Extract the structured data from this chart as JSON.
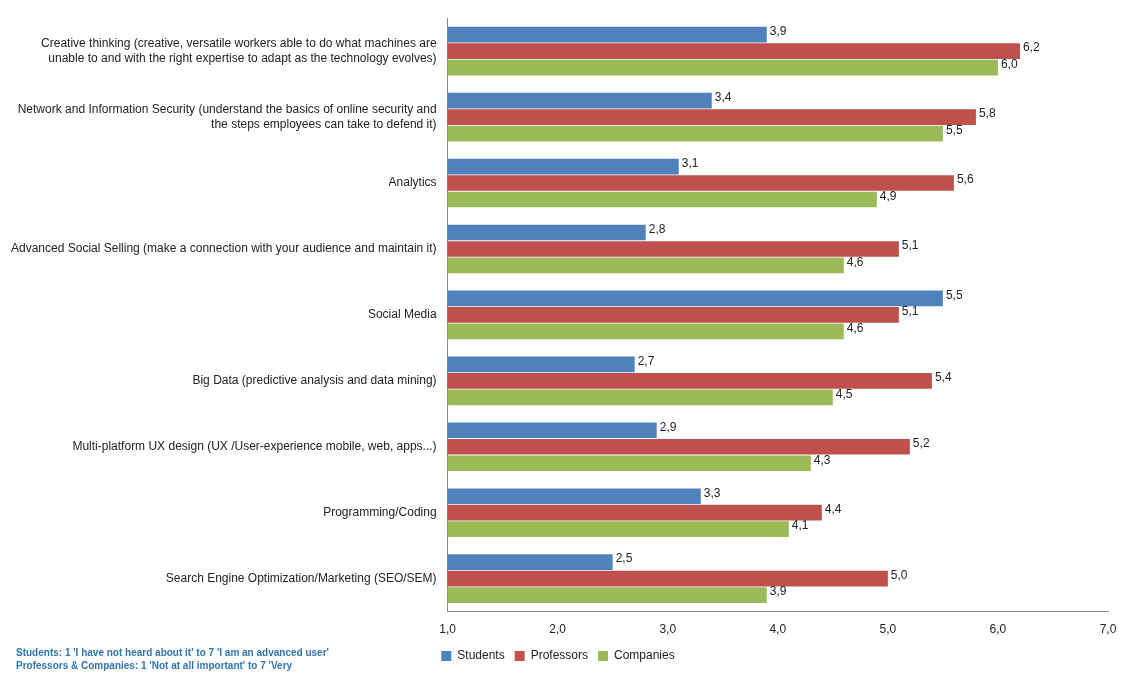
{
  "chart_data": {
    "type": "bar",
    "orientation": "horizontal",
    "categories": [
      "Creative thinking (creative, versatile workers able to do what machines are unable to and with the right expertise to adapt as the technology evolves)",
      "Network and Information Security (understand the basics of online security and the steps employees can take to defend it)",
      "Analytics",
      "Advanced Social Selling (make a connection with your audience and maintain it)",
      "Social Media",
      "Big Data (predictive analysis and data mining)",
      "Multi-platform UX design (UX /User-experience mobile, web, apps...)",
      "Programming/Coding",
      "Search Engine Optimization/Marketing (SEO/SEM)"
    ],
    "series": [
      {
        "name": "Students",
        "color": "#4f81bd",
        "values": [
          3.9,
          3.4,
          3.1,
          2.8,
          5.5,
          2.7,
          2.9,
          3.3,
          2.5
        ],
        "value_labels": [
          "3,9",
          "3,4",
          "3,1",
          "2,8",
          "5,5",
          "2,7",
          "2,9",
          "3,3",
          "2,5"
        ]
      },
      {
        "name": "Professors",
        "color": "#c0504d",
        "values": [
          6.2,
          5.8,
          5.6,
          5.1,
          5.1,
          5.4,
          5.2,
          4.4,
          5.0
        ],
        "value_labels": [
          "6,2",
          "5,8",
          "5,6",
          "5,1",
          "5,1",
          "5,4",
          "5,2",
          "4,4",
          "5,0"
        ]
      },
      {
        "name": "Companies",
        "color": "#9bbb59",
        "values": [
          6.0,
          5.5,
          4.9,
          4.6,
          4.6,
          4.5,
          4.3,
          4.1,
          3.9
        ],
        "value_labels": [
          "6,0",
          "5,5",
          "4,9",
          "4,6",
          "4,6",
          "4,5",
          "4,3",
          "4,1",
          "3,9"
        ]
      }
    ],
    "xlim": [
      1,
      7
    ],
    "xticks": [
      {
        "value": 1,
        "label": "1,0"
      },
      {
        "value": 2,
        "label": "2,0"
      },
      {
        "value": 3,
        "label": "3,0"
      },
      {
        "value": 4,
        "label": "4,0"
      },
      {
        "value": 5,
        "label": "5,0"
      },
      {
        "value": 6,
        "label": "6,0"
      },
      {
        "value": 7,
        "label": "7,0"
      }
    ],
    "grid": false,
    "legend": "bottom",
    "annotations": [
      "Students: 1 'I have not heard about it' to 7 'I am an advanced user'",
      "Professors & Companies: 1 'Not at all important' to 7 'Very"
    ]
  }
}
